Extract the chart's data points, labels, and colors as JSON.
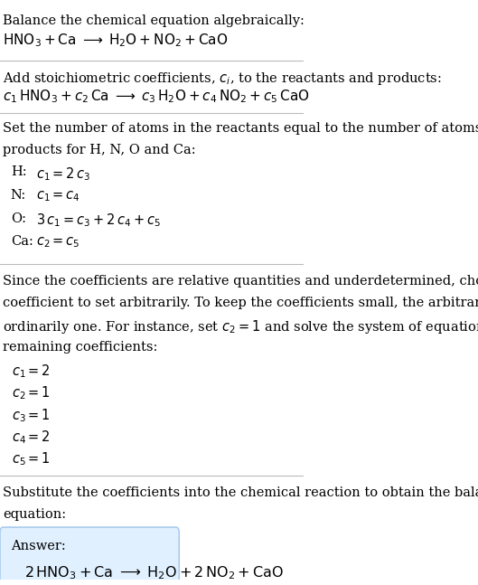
{
  "title_section": "Balance the chemical equation algebraically:",
  "eq1": "$\\mathrm{HNO_3 + Ca \\;\\longrightarrow\\; H_2O + NO_2 + CaO}$",
  "section2_title": "Add stoichiometric coefficients, $c_i$, to the reactants and products:",
  "eq2": "$c_1\\,\\mathrm{HNO_3} + c_2\\,\\mathrm{Ca} \\;\\longrightarrow\\; c_3\\,\\mathrm{H_2O} + c_4\\,\\mathrm{NO_2} + c_5\\,\\mathrm{CaO}$",
  "section3_title": "Set the number of atoms in the reactants equal to the number of atoms in the\nproducts for H, N, O and Ca:",
  "atom_eqs": [
    [
      "H:",
      "$c_1 = 2\\,c_3$"
    ],
    [
      "N:",
      "$c_1 = c_4$"
    ],
    [
      "O:",
      "$3\\,c_1 = c_3 + 2\\,c_4 + c_5$"
    ],
    [
      "Ca:",
      "$c_2 = c_5$"
    ]
  ],
  "section4_text": "Since the coefficients are relative quantities and underdetermined, choose a\ncoefficient to set arbitrarily. To keep the coefficients small, the arbitrary value is\nordinarily one. For instance, set $c_2 = 1$ and solve the system of equations for the\nremaining coefficients:",
  "coeff_solutions": [
    "$c_1 = 2$",
    "$c_2 = 1$",
    "$c_3 = 1$",
    "$c_4 = 2$",
    "$c_5 = 1$"
  ],
  "section5_title": "Substitute the coefficients into the chemical reaction to obtain the balanced\nequation:",
  "answer_label": "Answer:",
  "answer_eq": "$2\\,\\mathrm{HNO_3 + Ca \\;\\longrightarrow\\; H_2O + 2\\,NO_2 + CaO}$",
  "bg_color": "#ffffff",
  "line_color": "#cccccc",
  "answer_box_color": "#e0f0ff",
  "answer_box_border": "#aaccee",
  "text_color": "#000000",
  "font_size": 10.5,
  "small_font": 9.5
}
